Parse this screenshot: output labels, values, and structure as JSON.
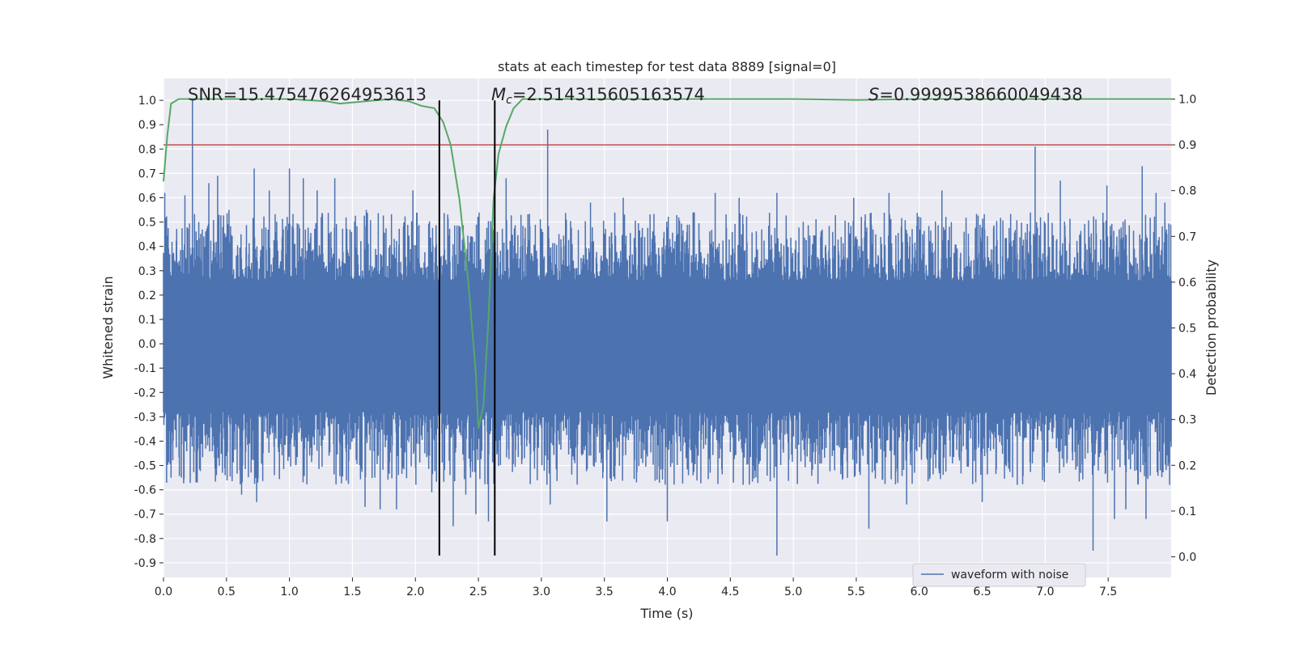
{
  "chart_data": {
    "type": "line",
    "title": "stats at each timestep for test data 8889 [signal=0]",
    "xlabel": "Time (s)",
    "ylabel": "Whitened strain",
    "y2label": "Detection probability",
    "xlim": [
      0.0,
      8.0
    ],
    "ylim": [
      -0.96,
      1.09
    ],
    "y2lim": [
      -0.045,
      1.045
    ],
    "grid": true,
    "x_ticks": [
      "0.0",
      "0.5",
      "1.0",
      "1.5",
      "2.0",
      "2.5",
      "3.0",
      "3.5",
      "4.0",
      "4.5",
      "5.0",
      "5.5",
      "6.0",
      "6.5",
      "7.0",
      "7.5"
    ],
    "y_ticks": [
      "1.0",
      "0.9",
      "0.8",
      "0.7",
      "0.6",
      "0.5",
      "0.4",
      "0.3",
      "0.2",
      "0.1",
      "0.0",
      "-0.1",
      "-0.2",
      "-0.3",
      "-0.4",
      "-0.5",
      "-0.6",
      "-0.7",
      "-0.8",
      "-0.9"
    ],
    "y2_ticks": [
      "1.0",
      "0.9",
      "0.8",
      "0.7",
      "0.6",
      "0.5",
      "0.4",
      "0.3",
      "0.2",
      "0.1",
      "0.0"
    ],
    "legend": {
      "placement": "lower-right",
      "entries": [
        "waveform with noise"
      ]
    },
    "annotations": {
      "snr": "SNR=15.475476264953613",
      "mc_symbol": "M",
      "mc_sub": "c",
      "mc_value": "=2.514315605163574",
      "s_symbol": "S",
      "s_value": "=0.9999538660049438"
    },
    "threshold": {
      "y2": 0.9,
      "color": "#c44e52"
    },
    "vlines": [
      {
        "x": 2.19,
        "ymin": -0.87,
        "ymax": 1.0
      },
      {
        "x": 2.63,
        "ymin": -0.87,
        "ymax": 1.0
      }
    ],
    "waveform": {
      "name": "waveform with noise",
      "color": "#4c72b0",
      "t_start": 0.0,
      "t_end": 8.0,
      "n_samples": 2600,
      "core_amplitude": 0.26,
      "peaks": [
        {
          "x": 0.23,
          "y": 1.0
        },
        {
          "x": 0.17,
          "y": 0.61
        },
        {
          "x": 0.01,
          "y": 0.62
        },
        {
          "x": 0.36,
          "y": 0.66
        },
        {
          "x": 0.43,
          "y": 0.69
        },
        {
          "x": 0.52,
          "y": 0.55
        },
        {
          "x": 0.72,
          "y": 0.72
        },
        {
          "x": 0.84,
          "y": 0.63
        },
        {
          "x": 1.0,
          "y": 0.72
        },
        {
          "x": 1.11,
          "y": 0.68
        },
        {
          "x": 1.22,
          "y": 0.63
        },
        {
          "x": 1.36,
          "y": 0.68
        },
        {
          "x": 1.61,
          "y": 0.55
        },
        {
          "x": 1.98,
          "y": 0.63
        },
        {
          "x": 2.72,
          "y": 0.68
        },
        {
          "x": 3.05,
          "y": 0.88
        },
        {
          "x": 3.39,
          "y": 0.58
        },
        {
          "x": 3.65,
          "y": 0.6
        },
        {
          "x": 4.38,
          "y": 0.62
        },
        {
          "x": 4.57,
          "y": 0.6
        },
        {
          "x": 4.87,
          "y": 0.62
        },
        {
          "x": 5.48,
          "y": 0.6
        },
        {
          "x": 5.76,
          "y": 0.62
        },
        {
          "x": 6.18,
          "y": 0.63
        },
        {
          "x": 6.92,
          "y": 0.81
        },
        {
          "x": 7.12,
          "y": 0.67
        },
        {
          "x": 7.49,
          "y": 0.65
        },
        {
          "x": 7.77,
          "y": 0.73
        },
        {
          "x": 7.88,
          "y": 0.62
        },
        {
          "x": 7.95,
          "y": 0.58
        },
        {
          "x": 0.06,
          "y": -0.55
        },
        {
          "x": 0.42,
          "y": -0.54
        },
        {
          "x": 0.62,
          "y": -0.62
        },
        {
          "x": 0.74,
          "y": -0.65
        },
        {
          "x": 1.6,
          "y": -0.67
        },
        {
          "x": 1.72,
          "y": -0.68
        },
        {
          "x": 1.85,
          "y": -0.68
        },
        {
          "x": 2.13,
          "y": -0.61
        },
        {
          "x": 2.4,
          "y": -0.62
        },
        {
          "x": 2.3,
          "y": -0.75
        },
        {
          "x": 2.48,
          "y": -0.7
        },
        {
          "x": 2.58,
          "y": -0.73
        },
        {
          "x": 3.07,
          "y": -0.66
        },
        {
          "x": 3.52,
          "y": -0.73
        },
        {
          "x": 4.0,
          "y": -0.73
        },
        {
          "x": 4.87,
          "y": -0.87
        },
        {
          "x": 5.6,
          "y": -0.76
        },
        {
          "x": 5.9,
          "y": -0.66
        },
        {
          "x": 6.5,
          "y": -0.65
        },
        {
          "x": 7.38,
          "y": -0.85
        },
        {
          "x": 7.55,
          "y": -0.72
        },
        {
          "x": 7.8,
          "y": -0.72
        },
        {
          "x": 7.64,
          "y": -0.68
        }
      ]
    },
    "probability": {
      "name": "detection probability",
      "color": "#55a868",
      "x": [
        0.0,
        0.03,
        0.06,
        0.12,
        0.2,
        0.5,
        1.0,
        1.3,
        1.4,
        1.6,
        1.8,
        1.95,
        2.05,
        2.15,
        2.22,
        2.28,
        2.35,
        2.42,
        2.48,
        2.5,
        2.54,
        2.58,
        2.62,
        2.66,
        2.72,
        2.78,
        2.85,
        3.0,
        5.0,
        5.5,
        6.0,
        8.0
      ],
      "y": [
        0.82,
        0.92,
        0.99,
        1.0,
        1.0,
        1.0,
        1.0,
        0.995,
        0.99,
        0.995,
        1.0,
        0.995,
        0.985,
        0.98,
        0.95,
        0.9,
        0.78,
        0.6,
        0.4,
        0.28,
        0.33,
        0.52,
        0.78,
        0.88,
        0.94,
        0.98,
        1.0,
        1.0,
        1.0,
        0.998,
        1.0,
        1.0
      ]
    }
  }
}
